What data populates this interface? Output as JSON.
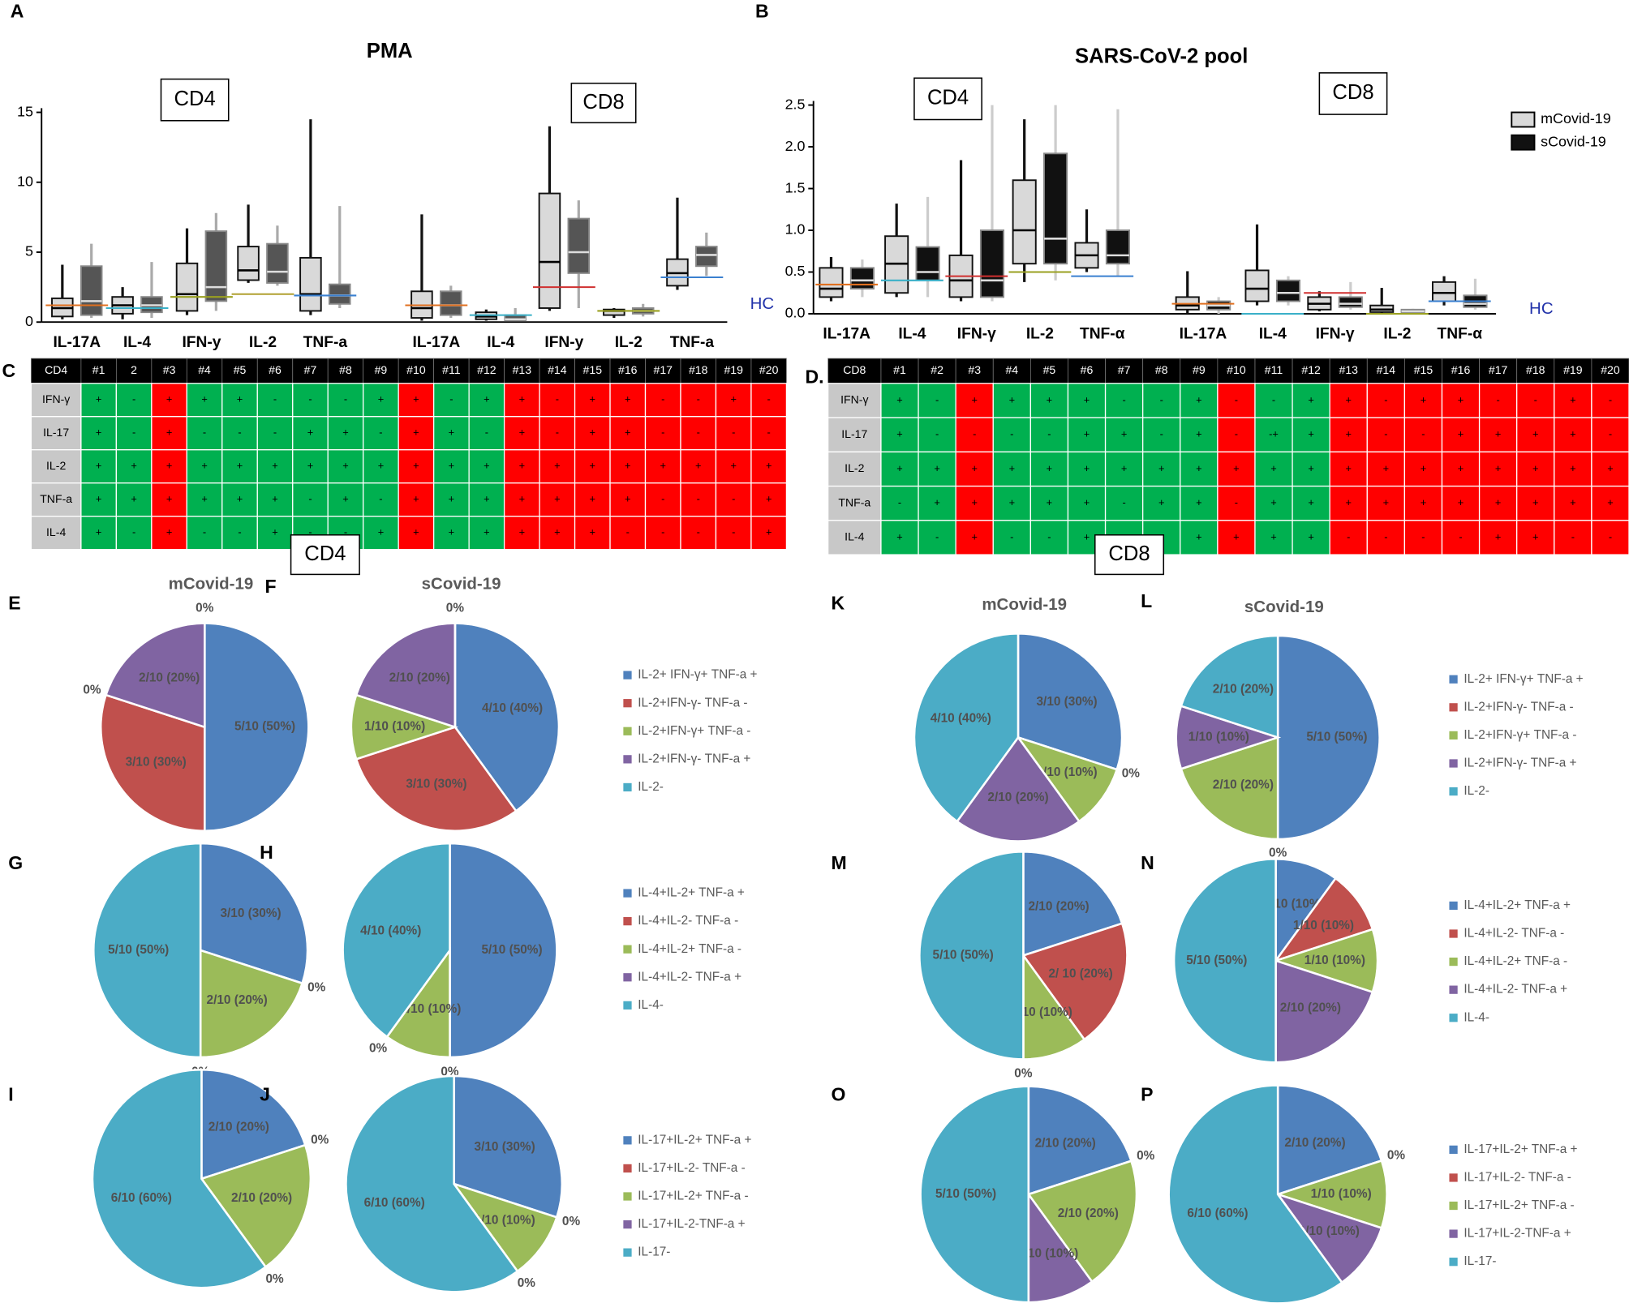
{
  "panels": {
    "A": {
      "type": "box",
      "letter": "A",
      "title": "PMA",
      "group_labels": [
        "CD4",
        "CD8"
      ],
      "categories": [
        "IL-17A",
        "IL-4",
        "IFN-y",
        "IL-2",
        "TNF-a",
        "IL-17A",
        "IL-4",
        "IFN-y",
        "IL-2",
        "TNF-a"
      ],
      "ylim": [
        0,
        15
      ],
      "yticks": [
        0,
        5,
        10,
        15
      ],
      "series": [
        {
          "color": "#d9d9d9",
          "whisker_color": "#111111",
          "values": [
            [
              0.2,
              0.4,
              1.0,
              1.7,
              4.1
            ],
            [
              0.2,
              0.6,
              1.2,
              1.8,
              2.5
            ],
            [
              0.5,
              0.8,
              2.0,
              4.2,
              6.7
            ],
            [
              2.8,
              3.0,
              3.7,
              5.4,
              8.4
            ],
            [
              0.5,
              0.8,
              2.0,
              4.6,
              14.5
            ],
            [
              0.1,
              0.3,
              1.0,
              2.2,
              7.7
            ],
            [
              0.1,
              0.2,
              0.4,
              0.7,
              0.9
            ],
            [
              0.8,
              1.0,
              4.3,
              9.2,
              14.0
            ],
            [
              0.3,
              0.5,
              0.8,
              0.9,
              1.0
            ],
            [
              2.3,
              2.6,
              3.5,
              4.5,
              8.9
            ]
          ]
        },
        {
          "color": "#555555",
          "whisker_color": "#aaaaaa",
          "values": [
            [
              0.3,
              0.5,
              1.5,
              4.0,
              5.6
            ],
            [
              0.3,
              0.7,
              1.2,
              1.8,
              4.3
            ],
            [
              0.8,
              1.5,
              2.5,
              6.5,
              7.8
            ],
            [
              2.6,
              2.8,
              3.6,
              5.6,
              6.9
            ],
            [
              1.0,
              1.3,
              1.9,
              2.7,
              8.3
            ],
            [
              0.3,
              0.5,
              1.2,
              2.2,
              2.6
            ],
            [
              0.1,
              0.1,
              0.2,
              0.5,
              1.0
            ],
            [
              1.0,
              3.5,
              5.0,
              7.4,
              8.7
            ],
            [
              0.4,
              0.6,
              0.8,
              1.0,
              1.3
            ],
            [
              3.3,
              4.0,
              4.8,
              5.4,
              6.4
            ]
          ]
        }
      ],
      "hc": {
        "label": "HC",
        "values": [
          1.2,
          1.0,
          1.8,
          2.0,
          1.9,
          1.2,
          0.5,
          2.5,
          0.8,
          3.2
        ],
        "colors": [
          "#e07020",
          "#3ab0c8",
          "#9aa020",
          "#b0a030",
          "#3a80d0",
          "#e07020",
          "#3ab0c8",
          "#d03030",
          "#9aa020",
          "#3a80d0"
        ]
      }
    },
    "B": {
      "type": "box",
      "letter": "B",
      "title": "SARS-CoV-2 pool",
      "group_labels": [
        "CD4",
        "CD8"
      ],
      "categories": [
        "IL-17A",
        "IL-4",
        "IFN-γ",
        "IL-2",
        "TNF-α",
        "IL-17A",
        "IL-4",
        "IFN-γ",
        "IL-2",
        "TNF-α"
      ],
      "ylim": [
        0,
        2.5
      ],
      "yticks": [
        {
          "value": 0,
          "label": "0.0"
        },
        0.5,
        {
          "value": 1,
          "label": "1.0"
        },
        1.5,
        {
          "value": 2,
          "label": "2.0"
        },
        2.5
      ],
      "legend": true,
      "series": [
        {
          "name": "mCovid-19",
          "color": "#d9d9d9",
          "whisker_color": "#111111",
          "values": [
            [
              0.15,
              0.2,
              0.3,
              0.55,
              0.68
            ],
            [
              0.2,
              0.25,
              0.6,
              0.93,
              1.32
            ],
            [
              0.15,
              0.2,
              0.4,
              0.7,
              1.84
            ],
            [
              0.38,
              0.6,
              1.0,
              1.6,
              2.33
            ],
            [
              0.5,
              0.55,
              0.7,
              0.85,
              1.25
            ],
            [
              0.0,
              0.05,
              0.1,
              0.2,
              0.51
            ],
            [
              0.1,
              0.15,
              0.3,
              0.52,
              1.07
            ],
            [
              0.03,
              0.05,
              0.12,
              0.2,
              0.27
            ],
            [
              0.0,
              0.02,
              0.05,
              0.1,
              0.31
            ],
            [
              0.1,
              0.15,
              0.25,
              0.38,
              0.45
            ]
          ]
        },
        {
          "name": "sCovid-19",
          "color": "#111111",
          "whisker_color": "#cccccc",
          "values": [
            [
              0.2,
              0.3,
              0.4,
              0.55,
              0.65
            ],
            [
              0.2,
              0.4,
              0.5,
              0.8,
              1.4
            ],
            [
              0.15,
              0.2,
              0.4,
              1.0,
              2.5
            ],
            [
              0.4,
              0.6,
              0.9,
              1.92,
              2.5
            ],
            [
              0.45,
              0.6,
              0.7,
              1.0,
              2.45
            ],
            [
              0.0,
              0.05,
              0.1,
              0.15,
              0.2
            ],
            [
              0.1,
              0.15,
              0.25,
              0.4,
              0.45
            ],
            [
              0.05,
              0.08,
              0.12,
              0.2,
              0.38
            ],
            [
              0.0,
              0.01,
              0.03,
              0.05,
              0.06
            ],
            [
              0.05,
              0.08,
              0.12,
              0.22,
              0.42
            ]
          ]
        }
      ],
      "hc": {
        "label": "HC",
        "values": [
          0.35,
          0.4,
          0.45,
          0.5,
          0.45,
          0.12,
          0.0,
          0.25,
          0.0,
          0.15
        ],
        "colors": [
          "#e07020",
          "#3ab0c8",
          "#d03030",
          "#9aa020",
          "#3a80d0",
          "#e07020",
          "#3ab0c8",
          "#d03030",
          "#9aa020",
          "#3a80d0"
        ]
      }
    },
    "C": {
      "type": "table",
      "letter": "C",
      "header": [
        "CD4",
        "#1",
        "2",
        "#3",
        "#4",
        "#5",
        "#6",
        "#7",
        "#8",
        "#9",
        "#10",
        "#11",
        "#12",
        "#13",
        "#14",
        "#15",
        "#16",
        "#17",
        "#18",
        "#19",
        "#20"
      ],
      "column_colors": [
        "#00b050",
        "#00b050",
        "#ff0000",
        "#00b050",
        "#00b050",
        "#00b050",
        "#00b050",
        "#00b050",
        "#00b050",
        "#ff0000",
        "#00b050",
        "#00b050",
        "#ff0000",
        "#ff0000",
        "#ff0000",
        "#ff0000",
        "#ff0000",
        "#ff0000",
        "#ff0000",
        "#ff0000"
      ],
      "rows": [
        [
          "IFN-γ",
          "+",
          "-",
          "+",
          "+",
          "+",
          "-",
          "-",
          "-",
          "+",
          "+",
          "-",
          "+",
          "+",
          "-",
          "+",
          "+",
          "-",
          "-",
          "+",
          "-"
        ],
        [
          "IL-17",
          "+",
          "-",
          "+",
          "-",
          "-",
          "-",
          "+",
          "+",
          "-",
          "+",
          "+",
          "-",
          "+",
          "-",
          "+",
          "+",
          "-",
          "-",
          "-",
          "-"
        ],
        [
          "IL-2",
          "+",
          "+",
          "+",
          "+",
          "+",
          "+",
          "+",
          "+",
          "+",
          "+",
          "+",
          "+",
          "+",
          "+",
          "+",
          "+",
          "+",
          "+",
          "+",
          "+"
        ],
        [
          "TNF-a",
          "+",
          "+",
          "+",
          "+",
          "+",
          "+",
          "-",
          "+",
          "-",
          "+",
          "+",
          "+",
          "+",
          "+",
          "+",
          "+",
          "-",
          "-",
          "-",
          "+"
        ],
        [
          "IL-4",
          "+",
          "-",
          "+",
          "-",
          "-",
          "+",
          "-",
          "-",
          "+",
          "+",
          "+",
          "+",
          "+",
          "+",
          "+",
          "-",
          "-",
          "-",
          "-",
          "+"
        ]
      ]
    },
    "D": {
      "type": "table",
      "letter": "D.",
      "header": [
        "CD8",
        "#1",
        "#2",
        "#3",
        "#4",
        "#5",
        "#6",
        "#7",
        "#8",
        "#9",
        "#10",
        "#11",
        "#12",
        "#13",
        "#14",
        "#15",
        "#16",
        "#17",
        "#18",
        "#19",
        "#20"
      ],
      "column_colors": [
        "#00b050",
        "#00b050",
        "#ff0000",
        "#00b050",
        "#00b050",
        "#00b050",
        "#00b050",
        "#00b050",
        "#00b050",
        "#ff0000",
        "#00b050",
        "#00b050",
        "#ff0000",
        "#ff0000",
        "#ff0000",
        "#ff0000",
        "#ff0000",
        "#ff0000",
        "#ff0000",
        "#ff0000"
      ],
      "rows": [
        [
          "IFN-γ",
          "+",
          "-",
          "+",
          "+",
          "+",
          "+",
          "-",
          "-",
          "+",
          "-",
          "-",
          "+",
          "+",
          "-",
          "+",
          "+",
          "-",
          "-",
          "+",
          "-"
        ],
        [
          "IL-17",
          "+",
          "-",
          "-",
          "-",
          "-",
          "+",
          "+",
          "-",
          "+",
          "-",
          "-+",
          "+",
          "+",
          "-",
          "-",
          "+",
          "+",
          "+",
          "+",
          "-"
        ],
        [
          "IL-2",
          "+",
          "+",
          "+",
          "+",
          "+",
          "+",
          "+",
          "+",
          "+",
          "+",
          "+",
          "+",
          "+",
          "+",
          "+",
          "+",
          "+",
          "+",
          "+",
          "+"
        ],
        [
          "TNF-a",
          "-",
          "+",
          "+",
          "+",
          "+",
          "+",
          "-",
          "+",
          "+",
          "-",
          "+",
          "+",
          "+",
          "+",
          "+",
          "+",
          "+",
          "+",
          "+",
          "+"
        ],
        [
          "IL-4",
          "+",
          "-",
          "+",
          "-",
          "-",
          "+",
          "-",
          "+",
          "+",
          "+",
          "+",
          "+",
          "-",
          "-",
          "-",
          "-",
          "+",
          "+",
          "-",
          "-"
        ]
      ]
    }
  },
  "sections": [
    "CD4",
    "CD8"
  ],
  "slice_colors": [
    "#4f81bd",
    "#c0504d",
    "#9bbb59",
    "#8064a2",
    "#4bacc6"
  ],
  "pie_rows": [
    {
      "legend": [
        "IL-2+ IFN-γ+ TNF-a +",
        "IL-2+IFN-γ- TNF-a -",
        "IL-2+IFN-γ+ TNF-a -",
        "IL-2+IFN-γ- TNF-a +",
        "IL-2-"
      ],
      "pies": [
        {
          "type": "pie",
          "letter": "E",
          "title": "mCovid-19",
          "values": [
            5,
            3,
            0,
            2,
            0
          ],
          "value_labels": [
            "5/10 (50%)",
            "3/10 (30%)",
            "0%",
            "2/10 (20%)",
            "0%"
          ]
        },
        {
          "type": "pie",
          "letter": "F",
          "title": "sCovid-19",
          "values": [
            4,
            3,
            1,
            2,
            0
          ],
          "value_labels": [
            "4/10 (40%)",
            "3/10 (30%)",
            "1/10 (10%)",
            "2/10 (20%)",
            "0%"
          ]
        }
      ]
    },
    {
      "legend": [
        "IL-4+IL-2+ TNF-a +",
        "IL-4+IL-2- TNF-a -",
        "IL-4+IL-2+ TNF-a -",
        "IL-4+IL-2- TNF-a +",
        "IL-4-"
      ],
      "pies": [
        {
          "type": "pie",
          "letter": "G",
          "values": [
            3,
            0,
            2,
            0,
            5
          ],
          "value_labels": [
            "3/10 (30%)",
            "0%",
            "2/10 (20%)",
            "0%",
            "5/10 (50%)"
          ]
        },
        {
          "type": "pie",
          "letter": "H",
          "values": [
            5,
            0,
            1,
            0,
            4
          ],
          "value_labels": [
            "5/10 (50%)",
            "0%",
            "1/10 (10%)",
            "0%",
            "4/10 (40%)"
          ]
        }
      ]
    },
    {
      "legend": [
        "IL-17+IL-2+ TNF-a +",
        "IL-17+IL-2- TNF-a -",
        "IL-17+IL-2+ TNF-a -",
        "IL-17+IL-2-TNF-a +",
        "IL-17-"
      ],
      "pies": [
        {
          "type": "pie",
          "letter": "I",
          "values": [
            2,
            0,
            2,
            0,
            6
          ],
          "value_labels": [
            "2/10 (20%)",
            "0%",
            "2/10 (20%)",
            "0%",
            "6/10 (60%)"
          ]
        },
        {
          "type": "pie",
          "letter": "J",
          "values": [
            3,
            0,
            1,
            0,
            6
          ],
          "value_labels": [
            "3/10 (30%)",
            "0%",
            "1/10 (10%)",
            "0%",
            "6/10 (60%)"
          ]
        }
      ]
    },
    {
      "legend": [
        "IL-2+ IFN-γ+ TNF-a +",
        "IL-2+IFN-γ- TNF-a -",
        "IL-2+IFN-γ+ TNF-a -",
        "IL-2+IFN-γ- TNF-a +",
        "IL-2-"
      ],
      "pies": [
        {
          "type": "pie",
          "letter": "K",
          "title": "mCovid-19",
          "values": [
            3,
            0,
            1,
            2,
            4
          ],
          "value_labels": [
            "3/10 (30%)",
            "0%",
            "1/10 (10%)",
            "2/10 (20%)",
            "4/10 (40%)"
          ]
        },
        {
          "type": "pie",
          "letter": "L",
          "title": "sCovid-19",
          "values": [
            5,
            0,
            2,
            1,
            2
          ],
          "value_labels": [
            "5/10 (50%)",
            "0%",
            "2/10 (20%)",
            "1/10 (10%)",
            "2/10 (20%)"
          ]
        }
      ]
    },
    {
      "legend": [
        "IL-4+IL-2+ TNF-a +",
        "IL-4+IL-2- TNF-a -",
        "IL-4+IL-2+ TNF-a -",
        "IL-4+IL-2- TNF-a +",
        "IL-4-"
      ],
      "pies": [
        {
          "type": "pie",
          "letter": "M",
          "values": [
            2,
            2,
            1,
            0,
            5
          ],
          "value_labels": [
            "2/10 (20%)",
            "2/ 10 (20%)",
            "1/10 (10%)",
            "0%",
            "5/10 (50%)"
          ]
        },
        {
          "type": "pie",
          "letter": "N",
          "values": [
            1,
            1,
            1,
            2,
            5
          ],
          "value_labels": [
            "1/10 (10%)",
            "1/10 (10%)",
            "1/10 (10%)",
            "2/10 (20%)",
            "5/10 (50%)"
          ]
        }
      ]
    },
    {
      "legend": [
        "IL-17+IL-2+ TNF-a +",
        "IL-17+IL-2- TNF-a -",
        "IL-17+IL-2+ TNF-a -",
        "IL-17+IL-2-TNF-a +",
        "IL-17-"
      ],
      "pies": [
        {
          "type": "pie",
          "letter": "O",
          "values": [
            2,
            0,
            2,
            1,
            5
          ],
          "value_labels": [
            "2/10 (20%)",
            "0%",
            "2/10 (20%)",
            "1/10 (10%)",
            "5/10 (50%)"
          ]
        },
        {
          "type": "pie",
          "letter": "P",
          "values": [
            2,
            0,
            1,
            1,
            6
          ],
          "value_labels": [
            "2/10 (20%)",
            "0%",
            "1/10 (10%)",
            "1/10 (10%)",
            "6/10 (60%)"
          ]
        }
      ]
    }
  ]
}
